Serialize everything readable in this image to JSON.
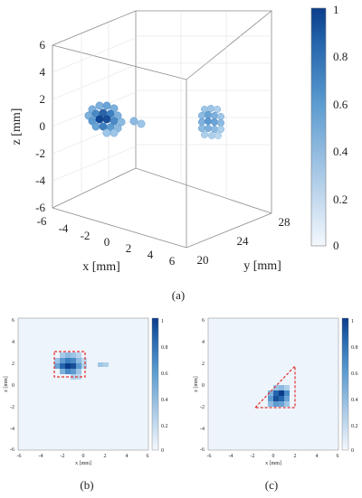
{
  "panel_a": {
    "caption": "(a)",
    "x_label": "x [mm]",
    "y_label": "y [mm]",
    "z_label": "z [mm]",
    "z_ticks": [
      "6",
      "4",
      "2",
      "0",
      "-2",
      "-4",
      "-6"
    ],
    "x_ticks": [
      "-6",
      "-4",
      "-2",
      "0",
      "2",
      "4",
      "6"
    ],
    "y_ticks": [
      "20",
      "24",
      "28"
    ],
    "colorbar_ticks": [
      "1",
      "0.8",
      "0.6",
      "0.4",
      "0.2",
      "0"
    ]
  },
  "panel_b": {
    "caption": "(b)",
    "x_label": "x [mm]",
    "z_label": "z [mm]",
    "x_ticks": [
      "-6",
      "-4",
      "-2",
      "0",
      "2",
      "4",
      "6"
    ],
    "z_ticks": [
      "6",
      "4",
      "2",
      "0",
      "-2",
      "-4",
      "-6"
    ],
    "colorbar_ticks": [
      "1",
      "0.8",
      "0.6",
      "0.4",
      "0.2",
      "0"
    ]
  },
  "panel_c": {
    "caption": "(c)",
    "x_label": "x [mm]",
    "z_label": "z [mm]",
    "x_ticks": [
      "-6",
      "-4",
      "-2",
      "0",
      "2",
      "4",
      "6"
    ],
    "z_ticks": [
      "6",
      "4",
      "2",
      "0",
      "-2",
      "-4",
      "-6"
    ],
    "colorbar_ticks": [
      "1",
      "0.8",
      "0.6",
      "0.4",
      "0.2",
      "0"
    ]
  },
  "colors": {
    "colormap_low": "#eef4fb",
    "colormap_high": "#0b3d8a",
    "outline_dash": "#e03030"
  }
}
